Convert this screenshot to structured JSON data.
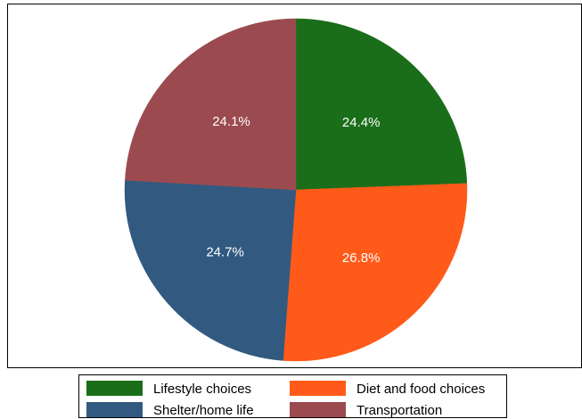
{
  "chart_data": {
    "type": "pie",
    "title": "",
    "start_angle_deg": 0,
    "direction": "clockwise",
    "legend_position": "bottom",
    "legend_columns": 2,
    "label_color": "#ffffff",
    "slices": [
      {
        "label": "Lifestyle choices",
        "value": 24.4,
        "display": "24.4%",
        "color": "#1a6e1a"
      },
      {
        "label": "Diet and food choices",
        "value": 26.8,
        "display": "26.8%",
        "color": "#ff5a19"
      },
      {
        "label": "Shelter/home life",
        "value": 24.7,
        "display": "24.7%",
        "color": "#325a80"
      },
      {
        "label": "Transportation",
        "value": 24.1,
        "display": "24.1%",
        "color": "#9b4b4f"
      }
    ]
  }
}
